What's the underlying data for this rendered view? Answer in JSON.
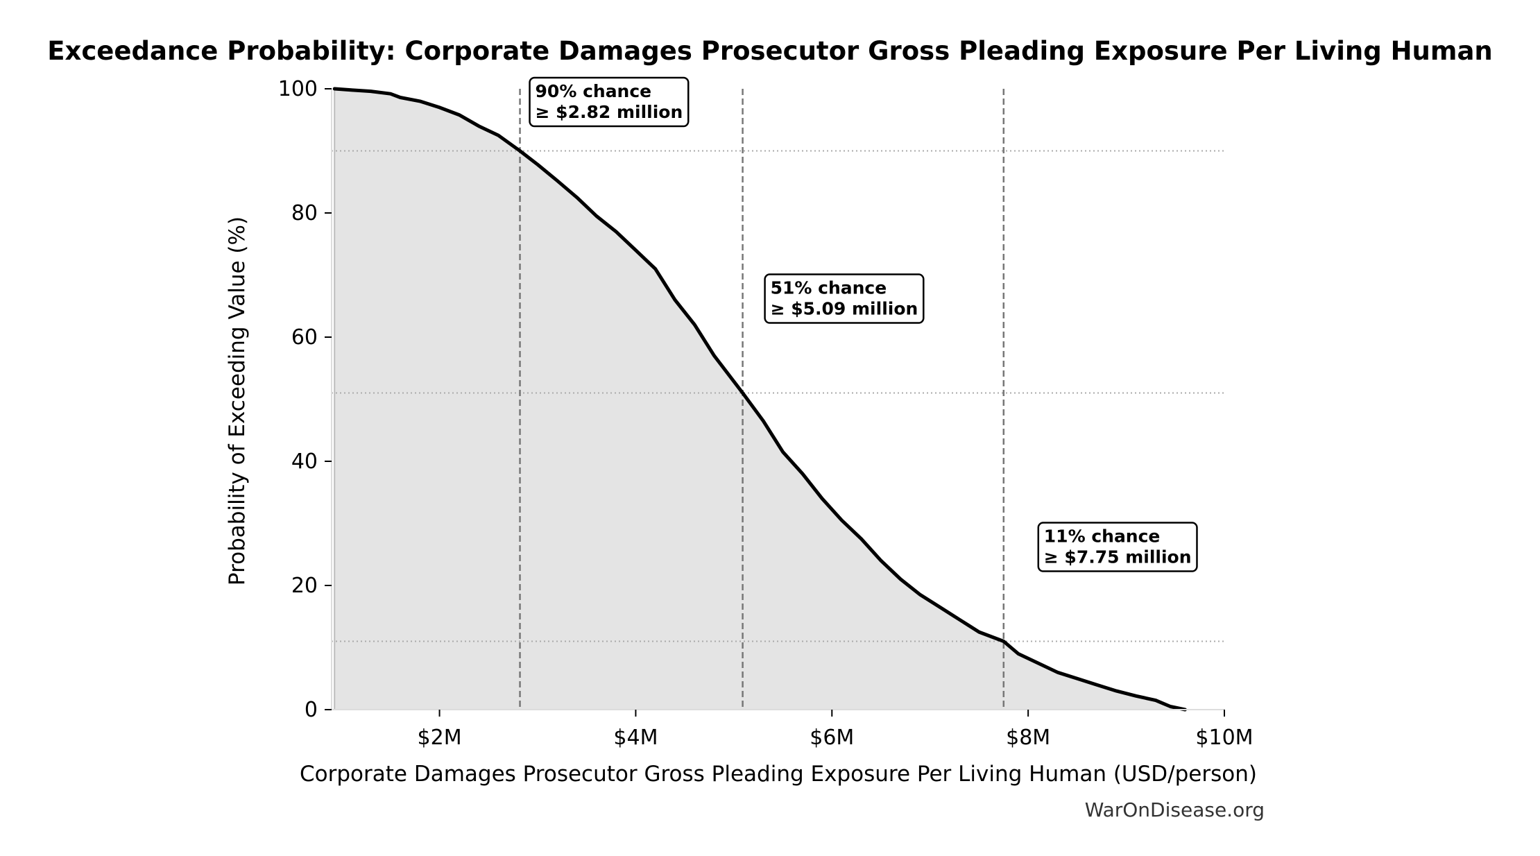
{
  "chart_data": {
    "type": "area",
    "title": "Exceedance Probability: Corporate Damages Prosecutor Gross Pleading Exposure Per Living Human",
    "xlabel": "Corporate Damages Prosecutor Gross Pleading Exposure Per Living Human (USD/person)",
    "ylabel": "Probability of Exceeding Value (%)",
    "xlim": [
      0.9,
      10.0
    ],
    "ylim": [
      0,
      100
    ],
    "x_unit": "million USD per person",
    "x_ticks": [
      {
        "value": 2,
        "label": "$2M"
      },
      {
        "value": 4,
        "label": "$4M"
      },
      {
        "value": 6,
        "label": "$6M"
      },
      {
        "value": 8,
        "label": "$8M"
      },
      {
        "value": 10,
        "label": "$10M"
      }
    ],
    "y_ticks": [
      {
        "value": 0,
        "label": "0"
      },
      {
        "value": 20,
        "label": "20"
      },
      {
        "value": 40,
        "label": "40"
      },
      {
        "value": 60,
        "label": "60"
      },
      {
        "value": 80,
        "label": "80"
      },
      {
        "value": 100,
        "label": "100"
      }
    ],
    "grid": false,
    "fill_color": "#e4e4e4",
    "line_color": "#000000",
    "series": [
      {
        "x": [
          0.93,
          1.1,
          1.3,
          1.5,
          1.6,
          1.8,
          2.0,
          2.2,
          2.4,
          2.6,
          2.82,
          3.0,
          3.2,
          3.4,
          3.6,
          3.8,
          4.0,
          4.2,
          4.4,
          4.6,
          4.8,
          5.09,
          5.3,
          5.5,
          5.7,
          5.9,
          6.1,
          6.3,
          6.5,
          6.7,
          6.9,
          7.1,
          7.3,
          7.5,
          7.75,
          7.9,
          8.1,
          8.3,
          8.5,
          8.7,
          8.9,
          9.1,
          9.3,
          9.45,
          9.6
        ],
        "y": [
          100,
          99.8,
          99.6,
          99.2,
          98.6,
          98,
          97,
          95.8,
          94,
          92.5,
          90,
          87.8,
          85.2,
          82.5,
          79.5,
          77,
          74,
          71,
          66,
          62,
          57,
          51,
          46.5,
          41.5,
          38,
          34,
          30.5,
          27.5,
          24,
          21,
          18.5,
          16.5,
          14.5,
          12.5,
          11,
          9,
          7.5,
          6,
          5,
          4,
          3,
          2.2,
          1.5,
          0.5,
          0
        ]
      }
    ],
    "thresholds": [
      {
        "x": 2.82,
        "y": 90
      },
      {
        "x": 5.09,
        "y": 51
      },
      {
        "x": 7.75,
        "y": 11
      }
    ],
    "annotations": [
      {
        "line1": "90% chance",
        "line2": "≥ $2.82 million"
      },
      {
        "line1": "51% chance",
        "line2": "≥ $5.09 million"
      },
      {
        "line1": "11% chance",
        "line2": "≥ $7.75 million"
      }
    ]
  },
  "watermark": "WarOnDisease.org"
}
